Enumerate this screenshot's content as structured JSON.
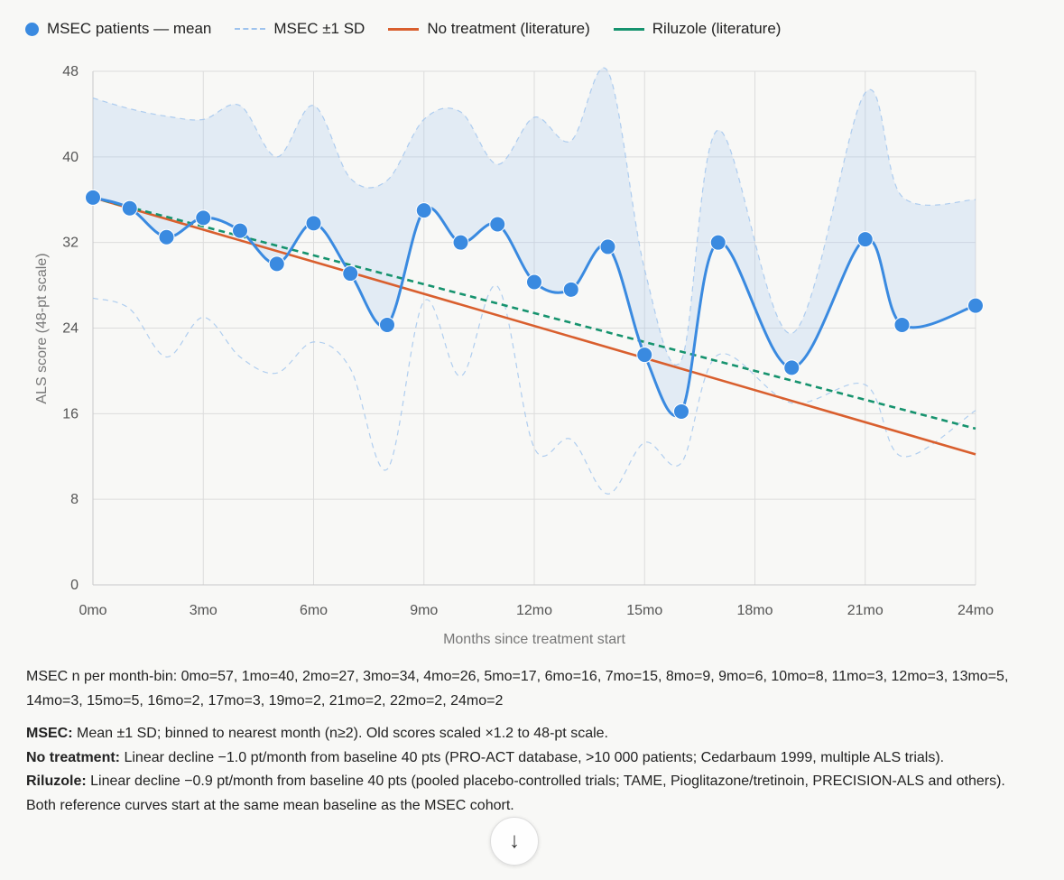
{
  "legend": [
    {
      "label": "MSEC patients — mean",
      "kind": "dot",
      "color": "#3a8ae0"
    },
    {
      "label": "MSEC ±1 SD",
      "kind": "dash",
      "color": "#9ec3ee"
    },
    {
      "label": "No treatment (literature)",
      "kind": "line",
      "color": "#d95f2e"
    },
    {
      "label": "Riluzole (literature)",
      "kind": "line",
      "color": "#16936e"
    }
  ],
  "chart_data": {
    "type": "line",
    "xlabel": "Months since treatment start",
    "ylabel": "ALS score (48-pt scale)",
    "xlim": [
      0,
      24
    ],
    "ylim": [
      0,
      48
    ],
    "x_ticks": [
      0,
      3,
      6,
      9,
      12,
      15,
      18,
      21,
      24
    ],
    "x_tick_labels": [
      "0mo",
      "3mo",
      "6mo",
      "9mo",
      "12mo",
      "15mo",
      "18mo",
      "21mo",
      "24mo"
    ],
    "y_ticks": [
      0,
      8,
      16,
      24,
      32,
      40,
      48
    ],
    "y_tick_labels": [
      "0",
      "8",
      "16",
      "24",
      "32",
      "40",
      "48"
    ],
    "grid": true,
    "legend_position": "top-left",
    "series": [
      {
        "name": "MSEC patients — mean",
        "color": "#3a8ae0",
        "style": "smooth-line-with-points",
        "x": [
          0,
          1,
          2,
          3,
          4,
          5,
          6,
          7,
          8,
          9,
          10,
          11,
          12,
          13,
          14,
          15,
          16,
          17,
          19,
          21,
          22,
          24
        ],
        "y": [
          36.2,
          35.2,
          32.5,
          34.3,
          33.1,
          30.0,
          33.8,
          29.1,
          24.3,
          35.0,
          32.0,
          33.7,
          28.3,
          27.6,
          31.6,
          21.5,
          16.2,
          32.0,
          20.3,
          32.3,
          24.3,
          26.1
        ]
      },
      {
        "name": "MSEC ±1 SD",
        "color": "#9ec3ee",
        "style": "band",
        "x": [
          0,
          1,
          2,
          3,
          4,
          5,
          6,
          7,
          8,
          9,
          10,
          11,
          12,
          13,
          14,
          15,
          16,
          17,
          19,
          21,
          22,
          24
        ],
        "upper": [
          45.5,
          44.5,
          43.8,
          43.5,
          44.8,
          40.0,
          44.8,
          38.0,
          37.8,
          43.5,
          44.2,
          39.3,
          43.7,
          41.5,
          48.0,
          29.5,
          21.0,
          42.5,
          23.5,
          46.0,
          36.3,
          36.0
        ],
        "lower": [
          26.8,
          25.8,
          21.3,
          25.0,
          21.3,
          19.8,
          22.7,
          20.2,
          10.8,
          26.5,
          19.5,
          27.9,
          12.8,
          13.6,
          8.5,
          13.3,
          11.4,
          21.5,
          17.0,
          18.7,
          12.0,
          16.3
        ]
      },
      {
        "name": "No treatment (literature)",
        "color": "#d95f2e",
        "style": "solid",
        "x": [
          0,
          24
        ],
        "y": [
          36.2,
          12.2
        ]
      },
      {
        "name": "Riluzole (literature)",
        "color": "#16936e",
        "style": "dashed",
        "x": [
          0,
          24
        ],
        "y": [
          36.2,
          14.6
        ]
      }
    ]
  },
  "notes": {
    "n_per_bin": "MSEC n per month-bin: 0mo=57, 1mo=40, 2mo=27, 3mo=34, 4mo=26, 5mo=17, 6mo=16, 7mo=15, 8mo=9, 9mo=6, 10mo=8, 11mo=3, 12mo=3, 13mo=5, 14mo=3, 15mo=5, 16mo=2, 17mo=3, 19mo=2, 21mo=2, 22mo=2, 24mo=2",
    "msec_label": "MSEC:",
    "msec_text": " Mean ±1 SD; binned to nearest month (n≥2). Old scores scaled ×1.2 to 48-pt scale.",
    "notx_label": "No treatment:",
    "notx_text": " Linear decline −1.0 pt/month from baseline 40 pts (PRO-ACT database, >10 000 patients; Cedarbaum 1999, multiple ALS trials).",
    "rilu_label": "Riluzole:",
    "rilu_text": " Linear decline −0.9 pt/month from baseline 40 pts (pooled placebo-controlled trials; TAME, Pioglitazone/tretinoin, PRECISION-ALS and others).",
    "footer": "Both reference curves start at the same mean baseline as the MSEC cohort."
  },
  "scroll_icon": "arrow-down-icon",
  "scroll_glyph": "↓"
}
